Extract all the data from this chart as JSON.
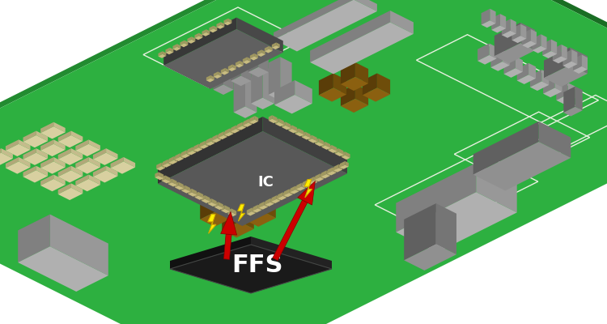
{
  "background_color": "#ffffff",
  "board_green": "#2db040",
  "board_green_dark": "#228b30",
  "board_green_side": "#1a6e24",
  "ic_top": "#585858",
  "ic_left": "#333333",
  "ic_right": "#404040",
  "ffs_top": "#1a1a1a",
  "ffs_left": "#111111",
  "ffs_right": "#222222",
  "ffs_text": "FFS",
  "ic_text": "IC",
  "arrow_color": "#cc0000",
  "arrow_dark": "#880000",
  "lightning_color": "#ffee00",
  "lightning_outline": "#ccaa00",
  "pin_top": "#c8bc80",
  "pin_side": "#a09860",
  "tan_top": "#8b6010",
  "tan_left": "#5a3d08",
  "tan_right": "#6e4d0a",
  "gray_top": "#909090",
  "gray_left": "#606060",
  "gray_right": "#757575",
  "lgray_top": "#b0b0b0",
  "lgray_left": "#808080",
  "lgray_right": "#989898",
  "dgray_top": "#606060",
  "dgray_left": "#383838",
  "dgray_right": "#484848",
  "cream_top": "#d8d0a0",
  "cream_left": "#b0a878",
  "cream_right": "#c4bc8c",
  "white_outline": "#e8f0e0",
  "figsize": [
    7.5,
    4.0
  ],
  "dpi": 100
}
